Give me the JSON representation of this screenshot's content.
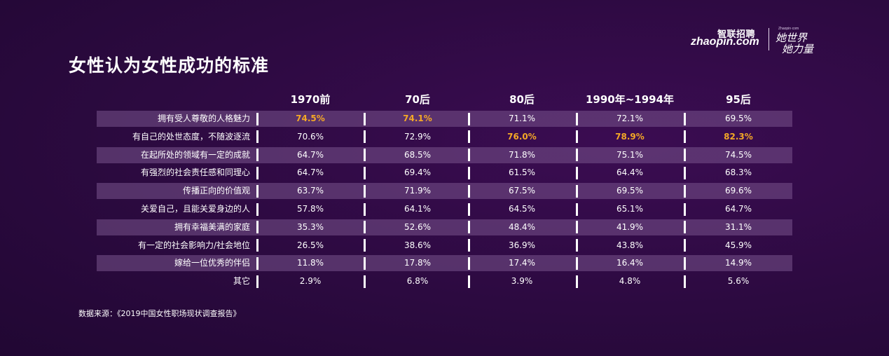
{
  "title": "女性认为女性成功的标准",
  "logo": {
    "brand_cn": "智联招聘",
    "brand_en": "zhaopin.com",
    "slogan_tiny": "Zhaopin·com",
    "slogan_line1": "她世界",
    "slogan_line2": "她力量"
  },
  "source": "数据来源：《2019中国女性职场现状调查报告》",
  "colors": {
    "highlight": "#f4a826",
    "band": "#79548c",
    "background": "#2c0a40"
  },
  "chart_data": {
    "type": "table",
    "columns": [
      "1970前",
      "70后",
      "80后",
      "1990年~1994年",
      "95后"
    ],
    "rows": [
      {
        "label": "拥有受人尊敬的人格魅力",
        "values": [
          "74.5%",
          "74.1%",
          "71.1%",
          "72.1%",
          "69.5%"
        ],
        "highlight": [
          0,
          1
        ]
      },
      {
        "label": "有自己的处世态度，不随波逐流",
        "values": [
          "70.6%",
          "72.9%",
          "76.0%",
          "78.9%",
          "82.3%"
        ],
        "highlight": [
          2,
          3,
          4
        ]
      },
      {
        "label": "在起所处的领域有一定的成就",
        "values": [
          "64.7%",
          "68.5%",
          "71.8%",
          "75.1%",
          "74.5%"
        ],
        "highlight": []
      },
      {
        "label": "有强烈的社会责任感和同理心",
        "values": [
          "64.7%",
          "69.4%",
          "61.5%",
          "64.4%",
          "68.3%"
        ],
        "highlight": []
      },
      {
        "label": "传播正向的价值观",
        "values": [
          "63.7%",
          "71.9%",
          "67.5%",
          "69.5%",
          "69.6%"
        ],
        "highlight": []
      },
      {
        "label": "关爱自己，且能关爱身边的人",
        "values": [
          "57.8%",
          "64.1%",
          "64.5%",
          "65.1%",
          "64.7%"
        ],
        "highlight": []
      },
      {
        "label": "拥有幸福美满的家庭",
        "values": [
          "35.3%",
          "52.6%",
          "48.4%",
          "41.9%",
          "31.1%"
        ],
        "highlight": []
      },
      {
        "label": "有一定的社会影响力/社会地位",
        "values": [
          "26.5%",
          "38.6%",
          "36.9%",
          "43.8%",
          "45.9%"
        ],
        "highlight": []
      },
      {
        "label": "嫁给一位优秀的伴侣",
        "values": [
          "11.8%",
          "17.8%",
          "17.4%",
          "16.4%",
          "14.9%"
        ],
        "highlight": []
      },
      {
        "label": "其它",
        "values": [
          "2.9%",
          "6.8%",
          "3.9%",
          "4.8%",
          "5.6%"
        ],
        "highlight": []
      }
    ]
  }
}
